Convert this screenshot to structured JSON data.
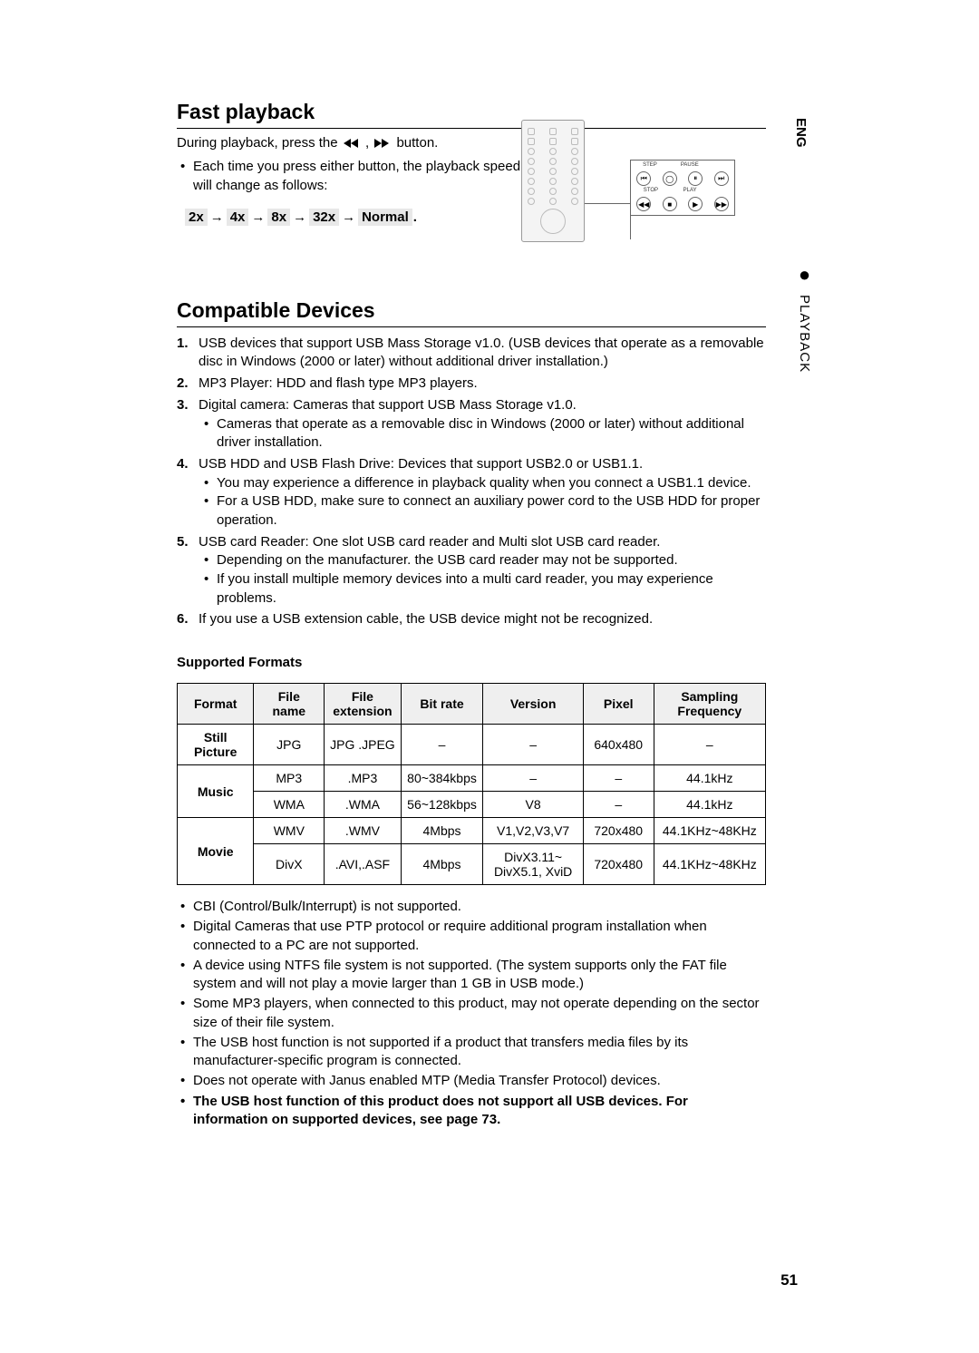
{
  "sideTab": {
    "lang": "ENG",
    "section": "PLAYBACK"
  },
  "pageNumber": "51",
  "fastPlayback": {
    "heading": "Fast playback",
    "intro_pre": "During playback, press the ",
    "intro_post": " button.",
    "bullet": "Each time you press either button, the playback speed will change as follows:",
    "speeds": [
      "2x",
      "4x",
      "8x",
      "32x",
      "Normal"
    ],
    "speed_period": "."
  },
  "remote": {
    "labels_top": [
      "STEP",
      "PAUSE",
      ""
    ],
    "labels_bottom": [
      "STOP",
      "PLAY",
      ""
    ],
    "icons_top": [
      "⏮",
      "◯",
      "⏸",
      "⏭"
    ],
    "icons_bottom": [
      "◀◀",
      "■",
      "▶",
      "▶▶"
    ]
  },
  "compatible": {
    "heading": "Compatible Devices",
    "items": [
      {
        "num": "1.",
        "text": "USB devices that support USB Mass Storage v1.0. (USB devices that operate as a removable disc in Windows (2000 or later) without additional driver installation.)"
      },
      {
        "num": "2.",
        "text": "MP3 Player: HDD and flash type MP3 players."
      },
      {
        "num": "3.",
        "text": "Digital camera: Cameras that support USB Mass Storage v1.0.",
        "subs": [
          "Cameras that operate as a removable disc in Windows (2000 or later) without additional driver installation."
        ]
      },
      {
        "num": "4.",
        "text": "USB HDD and USB Flash Drive: Devices that support USB2.0 or USB1.1.",
        "subs": [
          "You may experience a difference in playback quality when you connect a USB1.1 device.",
          "For a USB HDD, make sure to connect an auxiliary power cord to the USB HDD for proper operation."
        ]
      },
      {
        "num": "5.",
        "text": "USB card Reader: One slot USB card reader and Multi slot USB card reader.",
        "subs": [
          "Depending on the manufacturer. the USB card reader may not be supported.",
          "If you install multiple memory devices into a multi card reader, you may experience problems."
        ]
      },
      {
        "num": "6.",
        "text": "If you use a USB extension cable, the USB device might not be recognized."
      }
    ]
  },
  "formatsTitle": "Supported Formats",
  "formats": {
    "headers": [
      "Format",
      "File name",
      "File extension",
      "Bit rate",
      "Version",
      "Pixel",
      "Sampling Frequency"
    ],
    "rows": [
      {
        "format": "Still Picture",
        "rowspan": 1,
        "cells": [
          "JPG",
          "JPG .JPEG",
          "–",
          "–",
          "640x480",
          "–"
        ]
      },
      {
        "format": "Music",
        "rowspan": 2,
        "cells": [
          "MP3",
          ".MP3",
          "80~384kbps",
          "–",
          "–",
          "44.1kHz"
        ]
      },
      {
        "cells": [
          "WMA",
          ".WMA",
          "56~128kbps",
          "V8",
          "–",
          "44.1kHz"
        ]
      },
      {
        "format": "Movie",
        "rowspan": 2,
        "cells": [
          "WMV",
          ".WMV",
          "4Mbps",
          "V1,V2,V3,V7",
          "720x480",
          "44.1KHz~48KHz"
        ]
      },
      {
        "cells": [
          "DivX",
          ".AVI,.ASF",
          "4Mbps",
          "DivX3.11~ DivX5.1, XviD",
          "720x480",
          "44.1KHz~48KHz"
        ]
      }
    ],
    "col_widths": [
      "13%",
      "12%",
      "13%",
      "14%",
      "17%",
      "12%",
      "19%"
    ]
  },
  "notes": [
    {
      "text": "CBI (Control/Bulk/Interrupt) is not supported."
    },
    {
      "text": "Digital Cameras that use PTP protocol or require additional program installation when connected to a PC are not supported."
    },
    {
      "text": "A device using NTFS file system is not supported. (The system supports only the FAT file system and will not play a movie larger than 1 GB in USB mode.)"
    },
    {
      "text": "Some MP3 players, when connected to this product, may not operate depending on the sector size of their file system."
    },
    {
      "text": "The USB host function is not supported if a product that transfers media files by its manufacturer-specific program is connected."
    },
    {
      "text": "Does not operate with Janus enabled MTP (Media Transfer Protocol) devices."
    },
    {
      "text": "The USB host function of this product does not support all USB devices. For information on supported devices, see page 73.",
      "bold": true
    }
  ]
}
